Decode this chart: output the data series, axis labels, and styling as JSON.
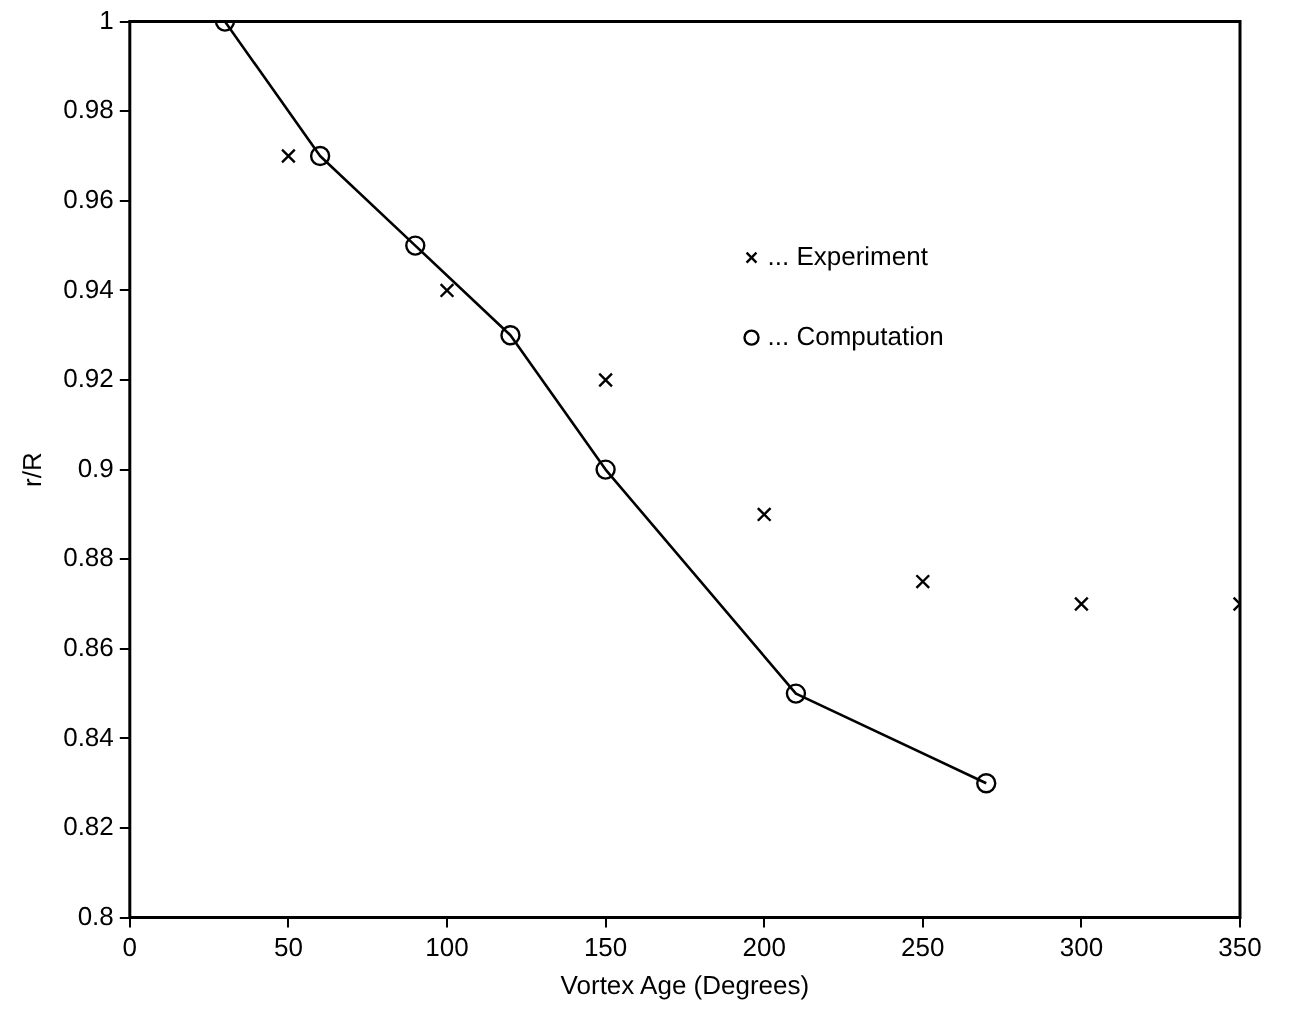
{
  "chart_data": {
    "type": "line",
    "xlabel": "Vortex Age (Degrees)",
    "ylabel": "r/R",
    "xlim": [
      0,
      350
    ],
    "xticks": [
      0,
      50,
      100,
      150,
      200,
      250,
      300,
      350
    ],
    "ylim": [
      0.8,
      1
    ],
    "yticks": [
      0.8,
      0.82,
      0.84,
      0.86,
      0.88,
      0.9,
      0.92,
      0.94,
      0.96,
      0.98,
      1
    ],
    "grid": false,
    "legend": "top right",
    "series": [
      {
        "name": "... Experiment",
        "type": "scatter",
        "marker": "cross",
        "color": "#000000",
        "x": [
          50,
          100,
          150,
          200,
          250,
          300,
          350
        ],
        "values": [
          0.97,
          0.94,
          0.92,
          0.89,
          0.875,
          0.87,
          0.87
        ]
      },
      {
        "name": "... Computation",
        "marker": "circle",
        "line_style": "solid",
        "color": "#000000",
        "x": [
          30,
          60,
          90,
          120,
          150,
          210,
          270
        ],
        "values": [
          1,
          0.97,
          0.95,
          0.93,
          0.9,
          0.85,
          0.83
        ]
      }
    ]
  }
}
